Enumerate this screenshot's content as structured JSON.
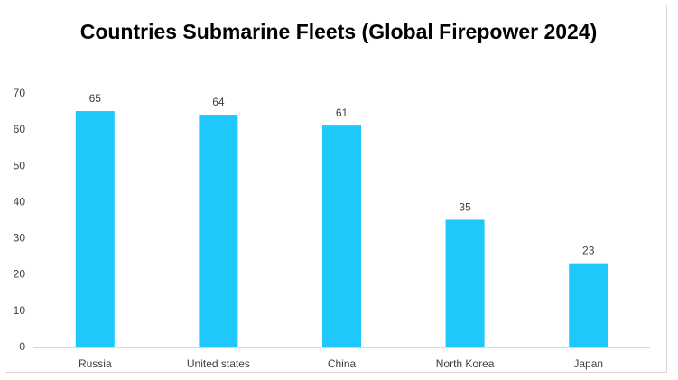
{
  "chart_data": {
    "type": "bar",
    "title": "Countries Submarine Fleets (Global Firepower 2024)",
    "categories": [
      "Russia",
      "United states",
      "China",
      "North Korea",
      "Japan"
    ],
    "values": [
      65,
      64,
      61,
      35,
      23
    ],
    "ylim": [
      0,
      70
    ],
    "yticks": [
      0,
      10,
      20,
      30,
      40,
      50,
      60,
      70
    ],
    "grid": false,
    "data_labels": true,
    "bar_color": "#1ec8fa"
  }
}
